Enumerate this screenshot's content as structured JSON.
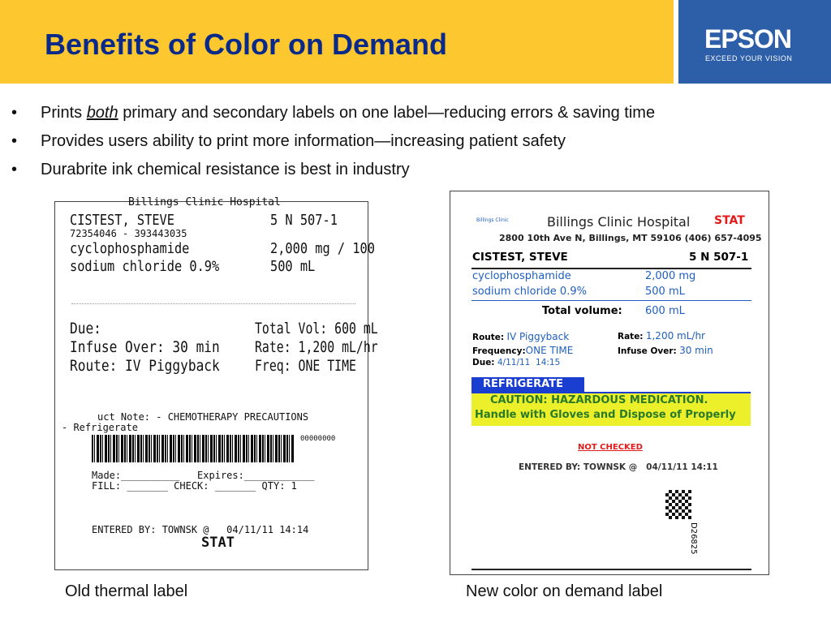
{
  "header": {
    "title": "Benefits of Color on Demand",
    "logo": "EPSON",
    "tagline": "EXCEED YOUR VISION"
  },
  "bullets": [
    [
      "Prints",
      "both",
      "primary and secondary labels on one label—reducing errors & saving time"
    ],
    [
      "Provides users ability to print more information—increasing patient safety"
    ],
    [
      "Durabrite ink chemical resistance is best in industry"
    ]
  ],
  "old_label": {
    "header": "Billings Clinic Hospital",
    "name": "CISTEST, STEVE",
    "room": "5 N 507-1",
    "ids": "72354046 - 393443035",
    "drugs": [
      [
        "cyclophosphamide",
        "2,000 mg / 100"
      ],
      [
        "sodium chloride 0.9%",
        "500 mL"
      ]
    ],
    "rows": [
      [
        "Due:",
        "Total Vol: 600 mL"
      ],
      [
        "Infuse Over: 30 min",
        "Rate: 1,200 mL/hr"
      ],
      [
        "Route: IV Piggyback",
        "Freq: ONE TIME"
      ]
    ],
    "note": "uct Note: - CHEMOTHERAPY PRECAUTIONS",
    "note2": "- Refrigerate",
    "barcode_number": "00000000",
    "made": "Made:__________   Expires:____________",
    "fill": "FILL: _______ CHECK: _______ QTY: 1",
    "entered": "ENTERED BY: TOWNSK @   04/11/11 14:14",
    "stat": "STAT"
  },
  "new_label": {
    "logo": "Billings Clinic",
    "hospital": "Billings Clinic Hospital",
    "stat": "STAT",
    "address": "2800 10th Ave N, Billings, MT 59106 (406) 657-4095",
    "name": "CISTEST, STEVE",
    "room": "5 N 507-1",
    "drugs": [
      [
        "cyclophosphamide",
        "2,000 mg"
      ],
      [
        "sodium chloride 0.9%",
        "500 mL"
      ]
    ],
    "total_label": "Total volume:",
    "total": "600 mL",
    "route_label": "Route:",
    "route": "IV Piggyback",
    "freq_label": "Frequency:",
    "freq": "ONE TIME",
    "due_label": "Due:",
    "due": "4/11/11  14:15",
    "rate_label": "Rate:",
    "rate": "1,200 mL/hr",
    "infuse_label": "Infuse Over:",
    "infuse": "30 min",
    "refrigerate": "REFRIGERATE",
    "caution": [
      "CAUTION: HAZARDOUS MEDICATION.",
      "Handle with Gloves and Dispose of Properly"
    ],
    "not_checked": "NOT CHECKED",
    "entered": "ENTERED BY: TOWNSK @   04/11/11 14:11",
    "code": "D26825"
  },
  "captions": [
    "Old thermal label",
    "New color on demand label"
  ]
}
